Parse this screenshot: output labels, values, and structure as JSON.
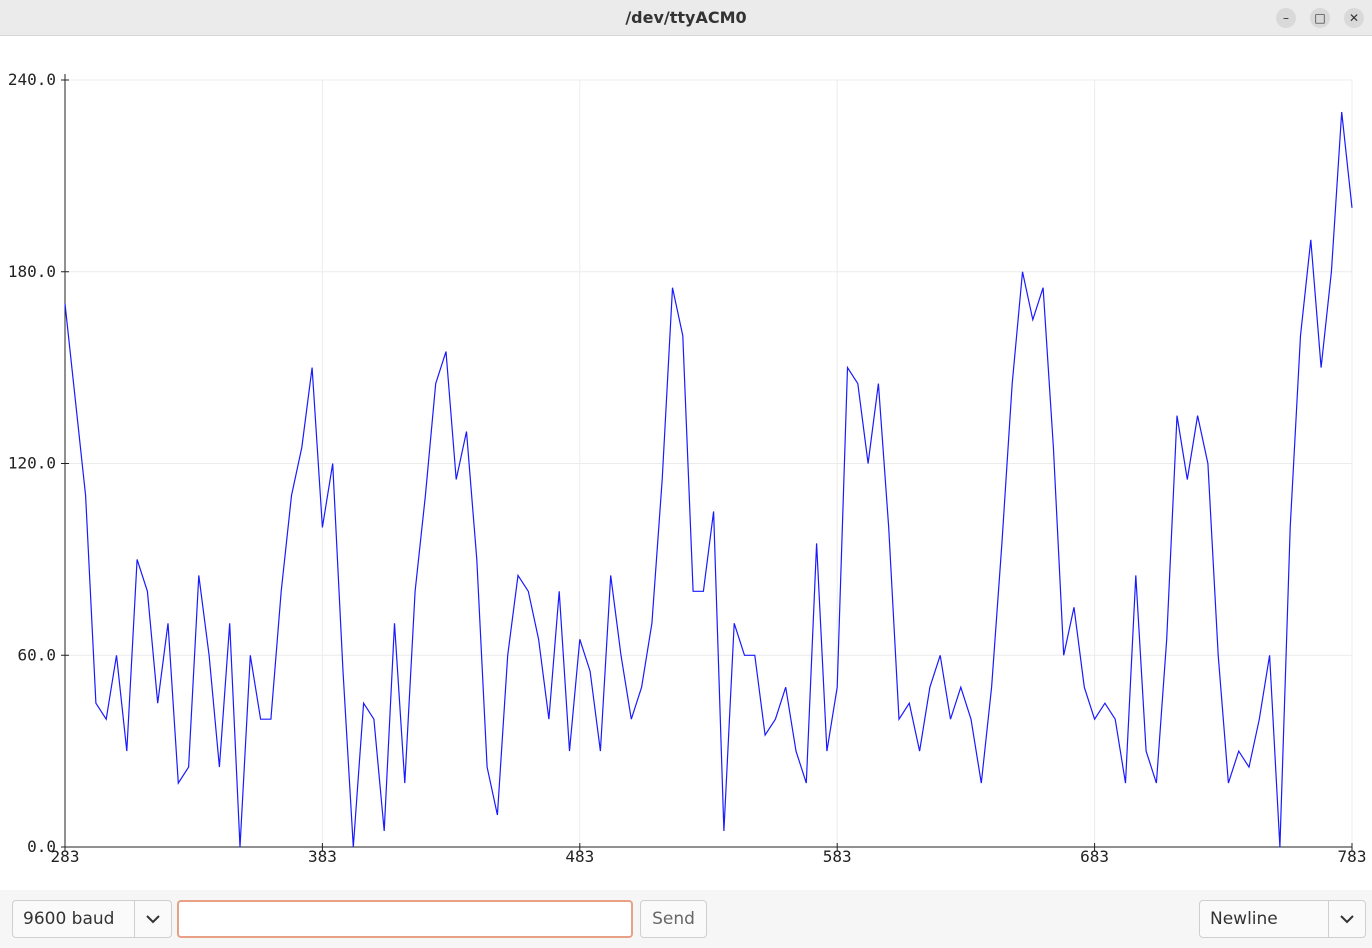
{
  "window": {
    "title": "/dev/ttyACM0"
  },
  "chart_data": {
    "type": "line",
    "x": [
      283,
      287,
      291,
      295,
      299,
      303,
      307,
      311,
      315,
      319,
      323,
      327,
      331,
      335,
      339,
      343,
      347,
      351,
      355,
      359,
      363,
      367,
      371,
      375,
      379,
      383,
      387,
      391,
      395,
      399,
      403,
      407,
      411,
      415,
      419,
      423,
      427,
      431,
      435,
      439,
      443,
      447,
      451,
      455,
      459,
      463,
      467,
      471,
      475,
      479,
      483,
      487,
      491,
      495,
      499,
      503,
      507,
      511,
      515,
      519,
      523,
      527,
      531,
      535,
      539,
      543,
      547,
      551,
      555,
      559,
      563,
      567,
      571,
      575,
      579,
      583,
      587,
      591,
      595,
      599,
      603,
      607,
      611,
      615,
      619,
      623,
      627,
      631,
      635,
      639,
      643,
      647,
      651,
      655,
      659,
      663,
      667,
      671,
      675,
      679,
      683,
      687,
      691,
      695,
      699,
      703,
      707,
      711,
      715,
      719,
      723,
      727,
      731,
      735,
      739,
      743,
      747,
      751,
      755,
      759,
      763,
      767,
      771,
      775,
      779,
      783
    ],
    "series": [
      {
        "color": "#1a1aff",
        "values": [
          170,
          140,
          110,
          45,
          40,
          60,
          30,
          90,
          80,
          45,
          70,
          20,
          25,
          85,
          60,
          25,
          70,
          0,
          60,
          40,
          40,
          80,
          110,
          125,
          150,
          100,
          120,
          55,
          0,
          45,
          40,
          5,
          70,
          20,
          80,
          110,
          145,
          155,
          115,
          130,
          90,
          25,
          10,
          60,
          85,
          80,
          65,
          40,
          80,
          30,
          65,
          55,
          30,
          85,
          60,
          40,
          50,
          70,
          115,
          175,
          160,
          80,
          80,
          105,
          5,
          70,
          60,
          60,
          35,
          40,
          50,
          30,
          20,
          95,
          30,
          50,
          150,
          145,
          120,
          145,
          100,
          40,
          45,
          30,
          50,
          60,
          40,
          50,
          40,
          20,
          50,
          95,
          145,
          180,
          165,
          175,
          125,
          60,
          75,
          50,
          40,
          45,
          40,
          20,
          85,
          30,
          20,
          65,
          135,
          115,
          135,
          120,
          60,
          20,
          30,
          25,
          40,
          60,
          0,
          100,
          160,
          190,
          150,
          180,
          230,
          200
        ]
      }
    ],
    "xlim": [
      283,
      783
    ],
    "ylim": [
      0,
      240
    ],
    "xticks": [
      283,
      383,
      483,
      583,
      683,
      783
    ],
    "yticks": [
      {
        "value": 0,
        "label": "0.0"
      },
      {
        "value": 60,
        "label": "60.0"
      },
      {
        "value": 120,
        "label": "120.0"
      },
      {
        "value": 180,
        "label": "180.0"
      },
      {
        "value": 240,
        "label": "240.0"
      }
    ],
    "grid": true
  },
  "controls": {
    "baud": "9600 baud",
    "send": "Send",
    "line_ending": "Newline"
  }
}
